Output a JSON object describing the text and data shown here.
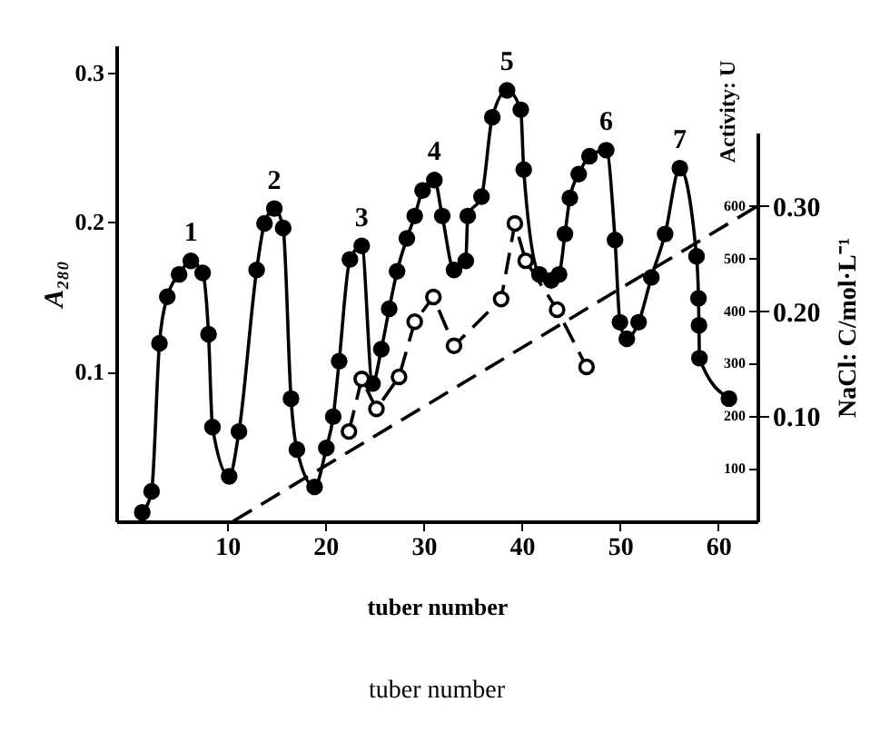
{
  "chart_data": {
    "type": "line",
    "xlabel": "tuber number",
    "ylabel": "A₂₈₀",
    "y2label": "Activity: U",
    "y3label": "NaCl: C/mol·L⁻¹",
    "xlim": [
      -1.3,
      64
    ],
    "xticks": [
      10,
      20,
      30,
      40,
      50,
      60
    ],
    "ylim": [
      0,
      0.318
    ],
    "yticks": [
      0.1,
      0.2,
      0.3
    ],
    "y2lim": [
      0,
      740
    ],
    "y2ticks": [
      100,
      200,
      300,
      400,
      500,
      600
    ],
    "y3lim": [
      0,
      0.37
    ],
    "y3ticks": [
      {
        "value": 0.1,
        "label": "0.10"
      },
      {
        "value": 0.2,
        "label": "0.20"
      },
      {
        "value": 0.3,
        "label": "0.30"
      }
    ],
    "series": [
      {
        "axis": "y",
        "color": "#000000",
        "marker": "circle",
        "line_style": "solid",
        "x": [
          1.35,
          2.3,
          3.1,
          3.9,
          5.1,
          6.3,
          7.5,
          8.1,
          8.5,
          10.2,
          11.2,
          13,
          13.8,
          14.8,
          15.7,
          16.5,
          17.1,
          18.9,
          20.1,
          20.8,
          21.4,
          22.5,
          23.7,
          24.8,
          25.7,
          26.5,
          27.3,
          28.3,
          29.1,
          29.9,
          31.1,
          31.9,
          33.1,
          34.3,
          34.5,
          35.9,
          37,
          38.5,
          39.9,
          40.2,
          41.8,
          43,
          43.8,
          44.4,
          44.9,
          45.8,
          46.9,
          48.6,
          49.5,
          50,
          50.7,
          51.9,
          53.2,
          54.6,
          56.1,
          57.8,
          58,
          58.05,
          58.1,
          61.1
        ],
        "values": [
          0.006,
          0.02,
          0.119,
          0.15,
          0.165,
          0.174,
          0.166,
          0.125,
          0.063,
          0.03,
          0.06,
          0.168,
          0.199,
          0.209,
          0.196,
          0.082,
          0.048,
          0.023,
          0.049,
          0.07,
          0.107,
          0.175,
          0.184,
          0.092,
          0.115,
          0.142,
          0.167,
          0.189,
          0.204,
          0.221,
          0.228,
          0.204,
          0.168,
          0.174,
          0.204,
          0.217,
          0.27,
          0.288,
          0.275,
          0.235,
          0.165,
          0.161,
          0.165,
          0.192,
          0.216,
          0.232,
          0.244,
          0.248,
          0.188,
          0.133,
          0.122,
          0.133,
          0.163,
          0.192,
          0.236,
          0.177,
          0.149,
          0.131,
          0.109,
          0.082
        ]
      },
      {
        "axis": "y2",
        "color": "#000000",
        "marker": "circle",
        "line_style": "dashed",
        "x": [
          22.4,
          23.7,
          25.2,
          27.5,
          29.1,
          31,
          33.1,
          37.9,
          39.3,
          40.4,
          43.6,
          46.6
        ],
        "values": [
          171,
          271,
          214,
          275,
          380,
          427,
          334,
          423,
          567,
          496,
          403,
          294
        ]
      },
      {
        "axis": "y3",
        "color": "#000000",
        "marker": "none",
        "line_style": "dashed",
        "x": [
          10.6,
          64
        ],
        "values": [
          0,
          0.3
        ]
      }
    ],
    "annotations": [
      {
        "text": "1",
        "x": 6.3,
        "y": 0.174
      },
      {
        "text": "2",
        "x": 14.8,
        "y": 0.209
      },
      {
        "text": "3",
        "x": 23.7,
        "y": 0.184
      },
      {
        "text": "4",
        "x": 31.1,
        "y": 0.228
      },
      {
        "text": "5",
        "x": 38.5,
        "y": 0.288
      },
      {
        "text": "6",
        "x": 48.6,
        "y": 0.248
      },
      {
        "text": "7",
        "x": 56.1,
        "y": 0.236
      },
      "tuber number"
    ]
  }
}
